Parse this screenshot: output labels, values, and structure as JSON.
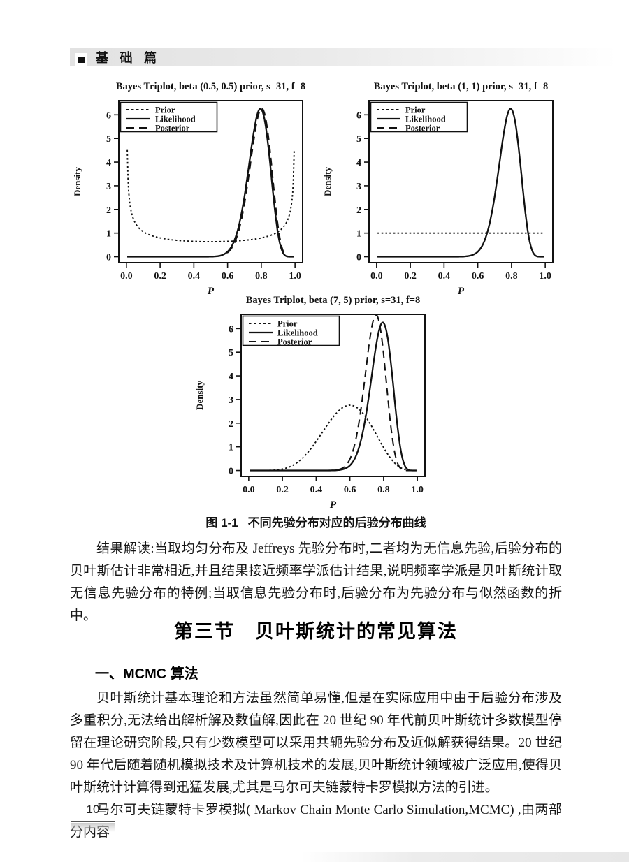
{
  "header": {
    "marker_icon": "black-square-bullet",
    "title": "基 础 篇"
  },
  "figure": {
    "label": "图 1-1",
    "caption": "不同先验分布对应的后验分布曲线"
  },
  "content": {
    "para_result": "结果解读:当取均匀分布及 Jeffreys 先验分布时,二者均为无信息先验,后验分布的贝叶斯估计非常相近,并且结果接近频率学派估计结果,说明频率学派是贝叶斯统计取无信息先验分布的特例;当取信息先验分布时,后验分布为先验分布与似然函数的折中。",
    "section_heading": "第三节　贝叶斯统计的常见算法",
    "subsection_heading": "一、MCMC 算法",
    "para_mcmc_1": "贝叶斯统计基本理论和方法虽然简单易懂,但是在实际应用中由于后验分布涉及多重积分,无法给出解析解及数值解,因此在 20 世纪 90 年代前贝叶斯统计多数模型停留在理论研究阶段,只有少数模型可以采用共轭先验分布及近似解获得结果。20 世纪 90 年代后随着随机模拟技术及计算机技术的发展,贝叶斯统计领域被广泛应用,使得贝叶斯统计计算得到迅猛发展,尤其是马尔可夫链蒙特卡罗模拟方法的引进。",
    "para_mcmc_2": "马尔可夫链蒙特卡罗模拟( Markov Chain Monte Carlo Simulation,MCMC) ,由两部分内容"
  },
  "footer": {
    "page_number": "10"
  },
  "line_color": "#111111",
  "chart_data": [
    {
      "type": "line",
      "title": "Bayes Triplot, beta (0.5, 0.5) prior, s=31, f=8",
      "xlabel": "P",
      "ylabel": "Density",
      "xlim": [
        0,
        1
      ],
      "ylim": [
        0,
        6.6
      ],
      "xticks": [
        "0.0",
        "0.2",
        "0.4",
        "0.6",
        "0.8",
        "1.0"
      ],
      "yticks": [
        0,
        1,
        2,
        3,
        4,
        5,
        6
      ],
      "grid": false,
      "legend_position": "top-left",
      "s": 31,
      "f": 8,
      "series": [
        {
          "name": "Prior",
          "style": "dotted",
          "dist": "beta",
          "a": 0.5,
          "b": 0.5,
          "shape": "U-shaped Jeffreys prior",
          "edge_density": 4.5,
          "min": {
            "p": 0.5,
            "density": 0.64
          }
        },
        {
          "name": "Likelihood",
          "style": "solid",
          "dist": "beta",
          "a": 32,
          "b": 9,
          "peak": {
            "p": 0.79,
            "density": 6.24
          }
        },
        {
          "name": "Posterior",
          "style": "dashed",
          "dist": "beta",
          "a": 31.5,
          "b": 8.5,
          "peak": {
            "p": 0.8,
            "density": 6.3
          }
        }
      ]
    },
    {
      "type": "line",
      "title": "Bayes Triplot, beta (1, 1) prior, s=31, f=8",
      "xlabel": "P",
      "ylabel": "Density",
      "xlim": [
        0,
        1
      ],
      "ylim": [
        0,
        6.6
      ],
      "xticks": [
        "0.0",
        "0.2",
        "0.4",
        "0.6",
        "0.8",
        "1.0"
      ],
      "yticks": [
        0,
        1,
        2,
        3,
        4,
        5,
        6
      ],
      "grid": false,
      "legend_position": "top-left",
      "s": 31,
      "f": 8,
      "series": [
        {
          "name": "Prior",
          "style": "dotted",
          "dist": "beta",
          "a": 1,
          "b": 1,
          "shape": "flat uniform prior",
          "density": 1
        },
        {
          "name": "Likelihood",
          "style": "solid",
          "dist": "beta",
          "a": 32,
          "b": 9,
          "peak": {
            "p": 0.79,
            "density": 6.24
          }
        },
        {
          "name": "Posterior",
          "style": "dashed",
          "dist": "beta",
          "a": 32,
          "b": 9,
          "peak": {
            "p": 0.79,
            "density": 6.24
          },
          "note": "coincides with likelihood"
        }
      ]
    },
    {
      "type": "line",
      "title": "Bayes Triplot, beta (7, 5) prior, s=31, f=8",
      "xlabel": "P",
      "ylabel": "Density",
      "xlim": [
        0,
        1
      ],
      "ylim": [
        0,
        6.6
      ],
      "xticks": [
        "0.0",
        "0.2",
        "0.4",
        "0.6",
        "0.8",
        "1.0"
      ],
      "yticks": [
        0,
        1,
        2,
        3,
        4,
        5,
        6
      ],
      "grid": false,
      "legend_position": "top-left",
      "s": 31,
      "f": 8,
      "series": [
        {
          "name": "Prior",
          "style": "dotted",
          "dist": "beta",
          "a": 7,
          "b": 5,
          "peak": {
            "p": 0.6,
            "density": 2.76
          }
        },
        {
          "name": "Likelihood",
          "style": "solid",
          "dist": "beta",
          "a": 32,
          "b": 9,
          "peak": {
            "p": 0.79,
            "density": 6.24
          }
        },
        {
          "name": "Posterior",
          "style": "dashed",
          "dist": "beta",
          "a": 38,
          "b": 13,
          "peak": {
            "p": 0.755,
            "density": 6.6
          }
        }
      ]
    }
  ]
}
